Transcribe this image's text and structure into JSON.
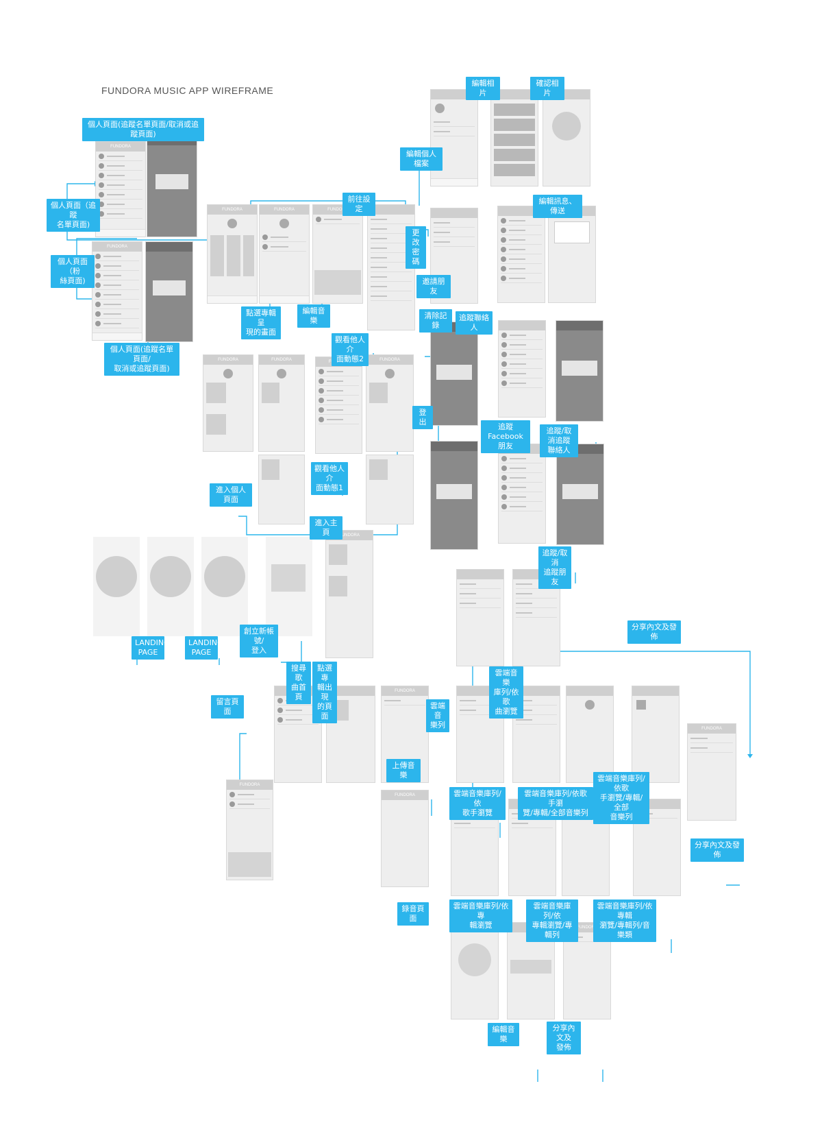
{
  "title": "FUNDORA MUSIC APP WIREFRAME",
  "colors": {
    "accent": "#2cb5ec",
    "screen": "#eeeeee",
    "screen_dark": "#8a8a8a"
  },
  "screens": {
    "brand": "FUNDORA"
  },
  "labels": {
    "l01": "個人頁面(追蹤名單頁面/取消或追蹤頁面)",
    "l02": "個人頁面（追蹤\n名單頁面)",
    "l03": "個人頁面（粉\n絲頁面)",
    "l04": "個人頁面(追蹤名單頁面/\n取消或追蹤頁面)",
    "l05": "前往設定",
    "l06": "點選專輯呈\n現的畫面",
    "l07": "編輯音樂",
    "l08": "編輯相片",
    "l09": "確認相片",
    "l10": "編輯個人檔案",
    "l11": "更改\n密碼",
    "l12": "邀請朋友",
    "l13": "編輯訊息、傳送",
    "l14": "清除記錄",
    "l15": "追蹤聯絡人",
    "l16": "觀看他人介\n面動態2",
    "l17": "登出",
    "l18": "追蹤Facebook\n朋友",
    "l19": "追蹤/取消追蹤\n聯絡人",
    "l20": "觀看他人介\n面動態1",
    "l21": "進入個人頁面",
    "l22": "進入主頁",
    "l23": "追蹤/取消\n追蹤朋友",
    "l24": "LANDING\nPAGE",
    "l25": "LANDING\nPAGE",
    "l26": "創立新帳號/\n登入",
    "l27": "分享內文及發佈",
    "l28": "雲端音樂\n庫列/依歌\n曲瀏覽",
    "l29": "搜尋歌\n曲首頁",
    "l30": "點選專\n輯出現\n的頁面",
    "l31": "留言頁面",
    "l32": "雲端音\n樂列",
    "l33": "上傳音樂",
    "l34": "雲端音樂庫列/依\n歌手瀏覽",
    "l35": "雲端音樂庫列/依歌手瀏\n覽/專輯/全部音樂列",
    "l36": "雲端音樂庫列/依歌\n手瀏覽/專輯/全部\n音樂列",
    "l37": "分享內文及發佈",
    "l38": "錄音頁面",
    "l39": "雲端音樂庫列/依專\n輯瀏覽",
    "l40": "雲端音樂庫列/依\n專輯瀏覽/專輯列",
    "l41": "雲端音樂庫列/依專輯\n瀏覽/專輯列/音樂類",
    "l42": "編輯音樂",
    "l43": "分享內文及\n發佈"
  }
}
